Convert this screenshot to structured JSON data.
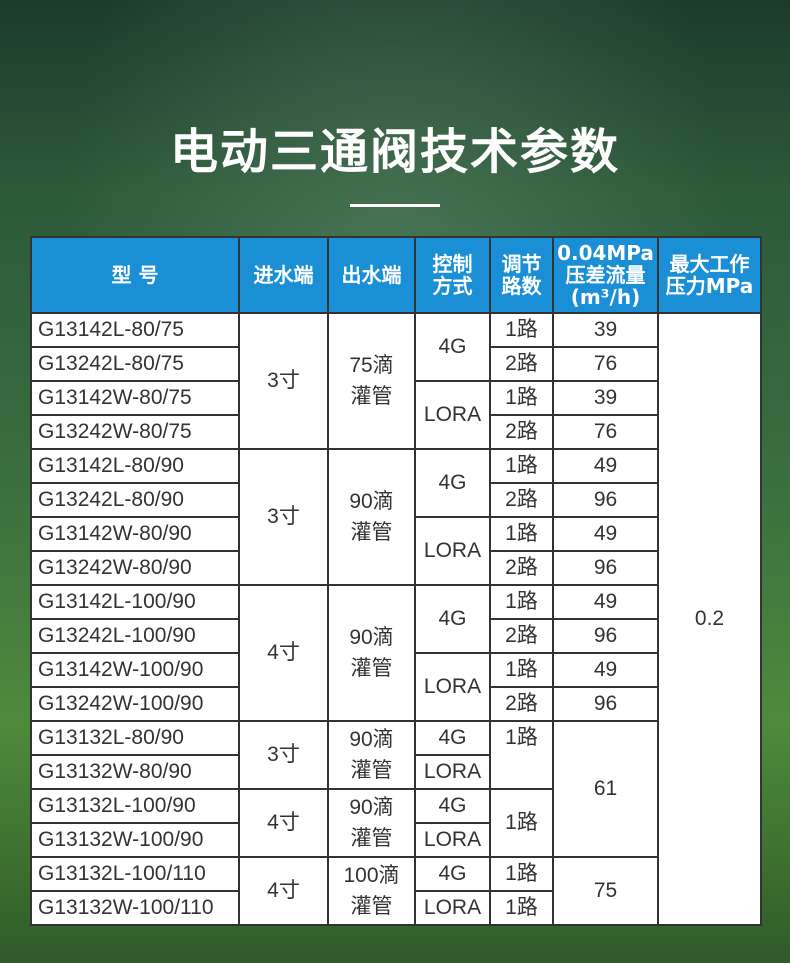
{
  "title": "电动三通阀技术参数",
  "colors": {
    "header": "#1b8fd6",
    "border": "#333333"
  },
  "headers": [
    "型  号",
    "进水端",
    "出水端",
    "控制\n方式",
    "调节\n路数",
    "0.04MPa\n压差流量\n(m³/h)",
    "最大工作\n压力MPa"
  ],
  "models": [
    "G13142L-80/75",
    "G13242L-80/75",
    "G13142W-80/75",
    "G13242W-80/75",
    "G13142L-80/90",
    "G13242L-80/90",
    "G13142W-80/90",
    "G13242W-80/90",
    "G13142L-100/90",
    "G13242L-100/90",
    "G13142W-100/90",
    "G13242W-100/90",
    "G13132L-80/90",
    "G13132W-80/90",
    "G13132L-100/90",
    "G13132W-100/90",
    "G13132L-100/110",
    "G13132W-100/110"
  ],
  "inlet": [
    "3寸",
    "3寸",
    "4寸",
    "3寸",
    "4寸",
    "4寸"
  ],
  "outlet": [
    "75滴\n灌管",
    "90滴\n灌管",
    "90滴\n灌管",
    "90滴\n灌管",
    "90滴\n灌管",
    "100滴\n灌管"
  ],
  "control": [
    "4G",
    "LORA",
    "4G",
    "LORA",
    "4G",
    "LORA",
    "4G",
    "LORA",
    "4G",
    "LORA",
    "4G",
    "LORA"
  ],
  "routes": [
    "1路",
    "2路",
    "1路",
    "2路",
    "1路",
    "2路",
    "1路",
    "2路",
    "1路",
    "2路",
    "1路",
    "2路",
    "1路",
    "1路",
    "1路",
    "1路"
  ],
  "flow": [
    "39",
    "76",
    "39",
    "76",
    "49",
    "96",
    "49",
    "96",
    "49",
    "96",
    "49",
    "96",
    "61",
    "75"
  ],
  "pressure": [
    "0.2"
  ]
}
